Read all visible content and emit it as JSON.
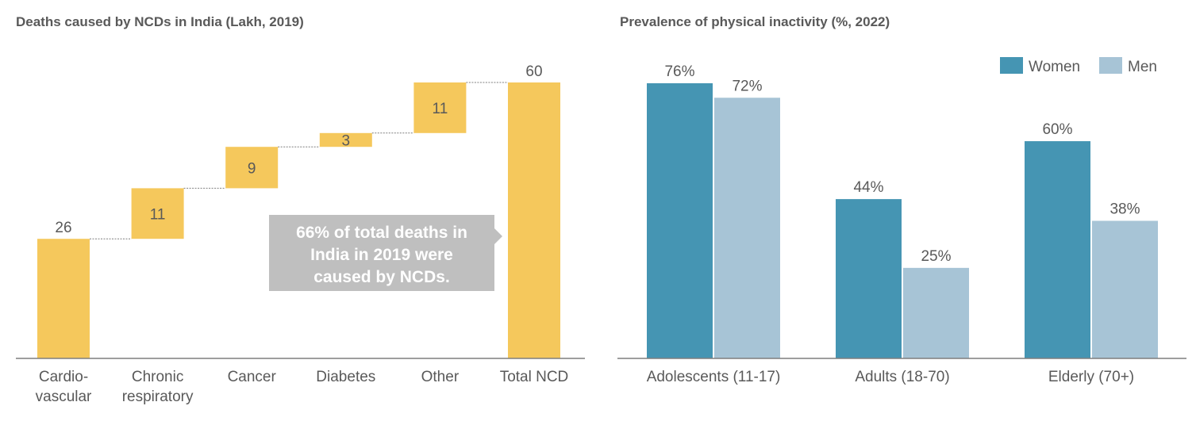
{
  "chart_data": [
    {
      "type": "bar",
      "subtype": "waterfall",
      "title": "Deaths caused by NCDs in India (Lakh, 2019)",
      "xlabel": "",
      "ylabel": "",
      "categories": [
        [
          "Cardio-",
          "vascular"
        ],
        [
          "Chronic",
          "respiratory"
        ],
        [
          "Cancer"
        ],
        [
          "Diabetes"
        ],
        [
          "Other"
        ],
        [
          "Total NCD"
        ]
      ],
      "values": [
        26,
        11,
        9,
        3,
        11,
        60
      ],
      "is_total": [
        false,
        false,
        false,
        false,
        false,
        true
      ],
      "value_labels": [
        "26",
        "11",
        "9",
        "3",
        "11",
        "60"
      ],
      "ylim": [
        0,
        60
      ],
      "grid": false,
      "bar_color": "#F5C85C",
      "connector_color": "#7f7f7f",
      "annotation": {
        "lines": [
          "66% of total deaths in",
          "India in 2019 were",
          "caused by NCDs."
        ],
        "background": "#BFBFBF",
        "points_to": "Total NCD"
      }
    },
    {
      "type": "bar",
      "subtype": "grouped",
      "title": "Prevalence of physical inactivity (%, 2022)",
      "xlabel": "",
      "ylabel": "",
      "categories": [
        "Adolescents (11-17)",
        "Adults (18-70)",
        "Elderly (70+)"
      ],
      "series": [
        {
          "name": "Women",
          "values": [
            76,
            44,
            60
          ],
          "labels": [
            "76%",
            "44%",
            "60%"
          ],
          "color": "#4595B3"
        },
        {
          "name": "Men",
          "values": [
            72,
            25,
            38
          ],
          "labels": [
            "72%",
            "25%",
            "38%"
          ],
          "color": "#A7C4D6"
        }
      ],
      "ylim": [
        0,
        76
      ],
      "grid": false,
      "legend_position": "top-right"
    }
  ],
  "colors": {
    "text": "#595959",
    "axis": "#7f7f7f"
  }
}
